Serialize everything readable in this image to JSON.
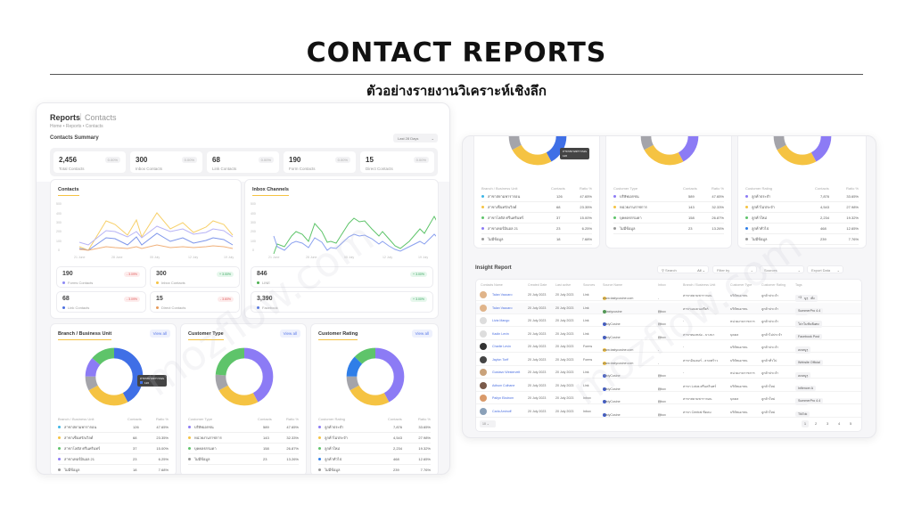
{
  "hero": {
    "title": "CONTACT REPORTS",
    "subtitle": "ตัวอย่างรายงานวิเคราะห์เชิงลึก"
  },
  "left": {
    "header": {
      "title": "Reports",
      "section": "Contacts",
      "breadcrumb": "Home • Reports • Contacts"
    },
    "summary": {
      "title": "Contacts Summary",
      "range": "Last 28 Days",
      "stats": [
        {
          "value": "2,456",
          "label": "Total Contacts",
          "pct": "0.00%"
        },
        {
          "value": "300",
          "label": "Inbox Contacts",
          "pct": "0.00%"
        },
        {
          "value": "68",
          "label": "Link Contacts",
          "pct": "0.00%"
        },
        {
          "value": "190",
          "label": "Form Contacts",
          "pct": "0.00%"
        },
        {
          "value": "15",
          "label": "Direct Contacts",
          "pct": "0.00%"
        }
      ]
    },
    "contacts_chart": {
      "title": "Contacts",
      "yticks": [
        "500",
        "400",
        "300",
        "200",
        "100",
        "0"
      ],
      "xticks": [
        "21 June",
        "28 June",
        "05 July",
        "12 July",
        "19 July"
      ],
      "minis": [
        {
          "value": "190",
          "label": "Forms Contacts",
          "badge": "- 3.09%",
          "color": "#8c88f5",
          "trend": "red"
        },
        {
          "value": "300",
          "label": "Inbox Contacts",
          "badge": "+ 3.00%",
          "color": "#f5c342",
          "trend": "green"
        },
        {
          "value": "68",
          "label": "Link Contacts",
          "badge": "- 3.09%",
          "color": "#4a6ee0",
          "trend": "red"
        },
        {
          "value": "15",
          "label": "Direct Contacts",
          "badge": "- 3.60%",
          "color": "#e89a5a",
          "trend": "red"
        }
      ]
    },
    "inbox_chart": {
      "title": "Inbox Channels",
      "yticks": [
        "500",
        "400",
        "300",
        "200",
        "100",
        "0"
      ],
      "xticks": [
        "21 June",
        "28 June",
        "05 July",
        "12 July",
        "19 July"
      ],
      "minis": [
        {
          "value": "846",
          "label": "LINE",
          "badge": "+ 3.00%",
          "color": "#4caf50",
          "trend": "green"
        },
        {
          "value": "3,390",
          "label": "Facebook",
          "badge": "+ 3.00%",
          "color": "#4a6ee0",
          "trend": "green"
        }
      ]
    },
    "donuts": [
      {
        "title": "Branch / Business Unit",
        "view_all": "View all",
        "col1": "Branch / Business Unit",
        "col2": "Contacts",
        "col3": "Ratio %",
        "tooltip": {
          "label": "สาขาสยามพารากอน",
          "value": "126"
        },
        "rows": [
          {
            "name": "สาขาสยามพารากอน",
            "contacts": "126",
            "ratio": "47.65%",
            "color": "#3db5e6"
          },
          {
            "name": "สาขาเซ็นทรัลเวิลด์",
            "contacts": "68",
            "ratio": "23.35%",
            "color": "#f5c342"
          },
          {
            "name": "สาขาโลตัส ศรีนครินทร์",
            "contacts": "37",
            "ratio": "15.00%",
            "color": "#5ec46a"
          },
          {
            "name": "สาขาเทอร์มินอล 21",
            "contacts": "23",
            "ratio": "6.25%",
            "color": "#8c7bf5"
          },
          {
            "name": "ไม่มีข้อมูล",
            "contacts": "18",
            "ratio": "7.68%",
            "color": "#999999"
          }
        ]
      },
      {
        "title": "Customer Type",
        "view_all": "View all",
        "col1": "Customer Type",
        "col2": "Contacts",
        "col3": "Ratio %",
        "rows": [
          {
            "name": "บริษัทเอกชน",
            "contacts": "589",
            "ratio": "47.65%",
            "color": "#8c7bf5"
          },
          {
            "name": "หน่วยงานราชการ",
            "contacts": "143",
            "ratio": "32.33%",
            "color": "#f5c342"
          },
          {
            "name": "บุคคลธรรมดา",
            "contacts": "158",
            "ratio": "26.87%",
            "color": "#5ec46a"
          },
          {
            "name": "ไม่มีข้อมูล",
            "contacts": "23",
            "ratio": "13.26%",
            "color": "#999999"
          }
        ]
      },
      {
        "title": "Customer Rating",
        "view_all": "View all",
        "col1": "Customer Rating",
        "col2": "Contacts",
        "col3": "Ratio %",
        "rows": [
          {
            "name": "ลูกค้าประจำ",
            "contacts": "7,876",
            "ratio": "33.65%",
            "color": "#8c7bf5"
          },
          {
            "name": "ลูกค้าไม่ประจำ",
            "contacts": "4,543",
            "ratio": "27.98%",
            "color": "#f5c342"
          },
          {
            "name": "ลูกค้าใหม่",
            "contacts": "2,234",
            "ratio": "19.32%",
            "color": "#5ec46a"
          },
          {
            "name": "ลูกค้าทั่วไป",
            "contacts": "468",
            "ratio": "12.65%",
            "color": "#2f7ee8"
          },
          {
            "name": "ไม่มีข้อมูล",
            "contacts": "239",
            "ratio": "7.76%",
            "color": "#999999"
          }
        ]
      }
    ]
  },
  "insight": {
    "title": "Insight Report",
    "search_placeholder": "Search",
    "all": "All",
    "filter": "Filter by",
    "sources": "Sources",
    "export": "Export Data",
    "columns": [
      "Contacts Name",
      "Created Date",
      "Last active",
      "Sources",
      "Source Name",
      "Inbox",
      "Branch / Business Unit",
      "Customer Type",
      "Customer Rating",
      "Tags"
    ],
    "rows": [
      {
        "name": "Talan Vaccaro",
        "created": "20 July 2023",
        "active": "20 July 2023",
        "source": "Link",
        "source_name": "www.tastycusine.com",
        "src_icon": "#f5c342",
        "inbox": "-",
        "branch": "สาขาสยามพารากอน",
        "type": "บริษัทเอกชน",
        "rating": "ลูกค้าประจำ",
        "tags": [
          "สายไม่รับสั่ง",
          "ลดหนูๆ",
          "+3"
        ],
        "av": "#e0b48a"
      },
      {
        "name": "Talan Vaccaro",
        "created": "20 July 2023",
        "active": "20 July 2023",
        "source": "Link",
        "source_name": "@tastycusine",
        "src_icon": "#4caf50",
        "inbox": "Inbox",
        "branch": "สาขาเอมควอเทียร์",
        "type": "บริษัทเอกชน",
        "rating": "ลูกค้าประจำ",
        "tags": [
          "โปรดี",
          "SummerPro 4.4"
        ],
        "av": "#e0b48a"
      },
      {
        "name": "Livia Mango",
        "created": "20 July 2023",
        "active": "20 July 2023",
        "source": "Link",
        "source_name": "TastyCusine",
        "src_icon": "#3b5bdb",
        "inbox": "Inbox",
        "branch": "-",
        "type": "หน่วยงานราชการ",
        "rating": "ลูกค้าประจำ",
        "tags": [
          "FB Ads",
          "โปรโมชันพิเศษ"
        ],
        "av": "#dddddd"
      },
      {
        "name": "Kadin Levin",
        "created": "20 July 2023",
        "active": "20 July 2023",
        "source": "Link",
        "source_name": "TastyCusine",
        "src_icon": "#3b5bdb",
        "inbox": "Inbox",
        "branch": "สาขาทองหล่อ - บางนา",
        "type": "บุคคล",
        "rating": "ลูกค้าไม่ประจำ",
        "tags": [
          "Facebook Post"
        ],
        "av": "#dddddd"
      },
      {
        "name": "Charlie Levin",
        "created": "20 July 2023",
        "active": "20 July 2023",
        "source": "Forms",
        "source_name": "www.tastycusine.com",
        "src_icon": "#f5c342",
        "inbox": "-",
        "branch": "-",
        "type": "บริษัทเอกชน",
        "rating": "ลูกค้าประจำ",
        "tags": [
          "ลดหนูๆ"
        ],
        "av": "#333333"
      },
      {
        "name": "Jaylon Torff",
        "created": "20 July 2023",
        "active": "20 July 2023",
        "source": "Forms",
        "source_name": "www.tastycusine.com",
        "src_icon": "#f5c342",
        "inbox": "-",
        "branch": "สาขาอินเตอร์ - ลาดพร้าว",
        "type": "บริษัทเอกชน",
        "rating": "ลูกค้าทั่วไป",
        "tags": [
          "Website Official"
        ],
        "av": "#444444"
      },
      {
        "name": "Gustavo Westervelt",
        "created": "20 July 2023",
        "active": "20 July 2023",
        "source": "Link",
        "source_name": "TastyCusine",
        "src_icon": "#3b5bdb",
        "inbox": "Inbox",
        "branch": "-",
        "type": "หน่วยงานราชการ",
        "rating": "ลูกค้าประจำ",
        "tags": [
          "ลดหนูๆ"
        ],
        "av": "#c9a27a"
      },
      {
        "name": "Adison Culhane",
        "created": "20 July 2023",
        "active": "20 July 2023",
        "source": "Link",
        "source_name": "TastyCusine",
        "src_icon": "#3b5bdb",
        "inbox": "Inbox",
        "branch": "สาขา Lotus ศรีนครินทร์",
        "type": "บริษัทเอกชน",
        "rating": "ลูกค้าใหม่",
        "tags": [
          "Inflencer A"
        ],
        "av": "#7a5a4a"
      },
      {
        "name": "Paityn Ekstrom",
        "created": "20 July 2023",
        "active": "20 July 2023",
        "source": "Inbox",
        "source_name": "TastyCusine",
        "src_icon": "#3b5bdb",
        "inbox": "Inbox",
        "branch": "สาขาสยามพารากอน",
        "type": "บุคคล",
        "rating": "ลูกค้าใหม่",
        "tags": [
          "โปรดี",
          "SummerPro 4.4"
        ],
        "av": "#d99a6a"
      },
      {
        "name": "Carla Aminoff",
        "created": "20 July 2023",
        "active": "20 July 2023",
        "source": "Inbox",
        "source_name": "TastyCusine",
        "src_icon": "#3b5bdb",
        "inbox": "Inbox",
        "branch": "สาขา Central ชิดลม",
        "type": "บริษัทเอกชน",
        "rating": "ลูกค้าใหม่",
        "tags": [
          "TikTok"
        ],
        "av": "#8aa0b8"
      }
    ],
    "page_size": "10",
    "pages": [
      "1",
      "2",
      "3",
      "4",
      "5"
    ]
  },
  "watermark": "mozflow.com",
  "colors": {
    "accent": "#f5c342",
    "link": "#4a6ee0",
    "purple": "#8c7bf5",
    "green": "#5ec46a",
    "blue": "#4a6ee0",
    "gray": "#a0a0a8"
  }
}
